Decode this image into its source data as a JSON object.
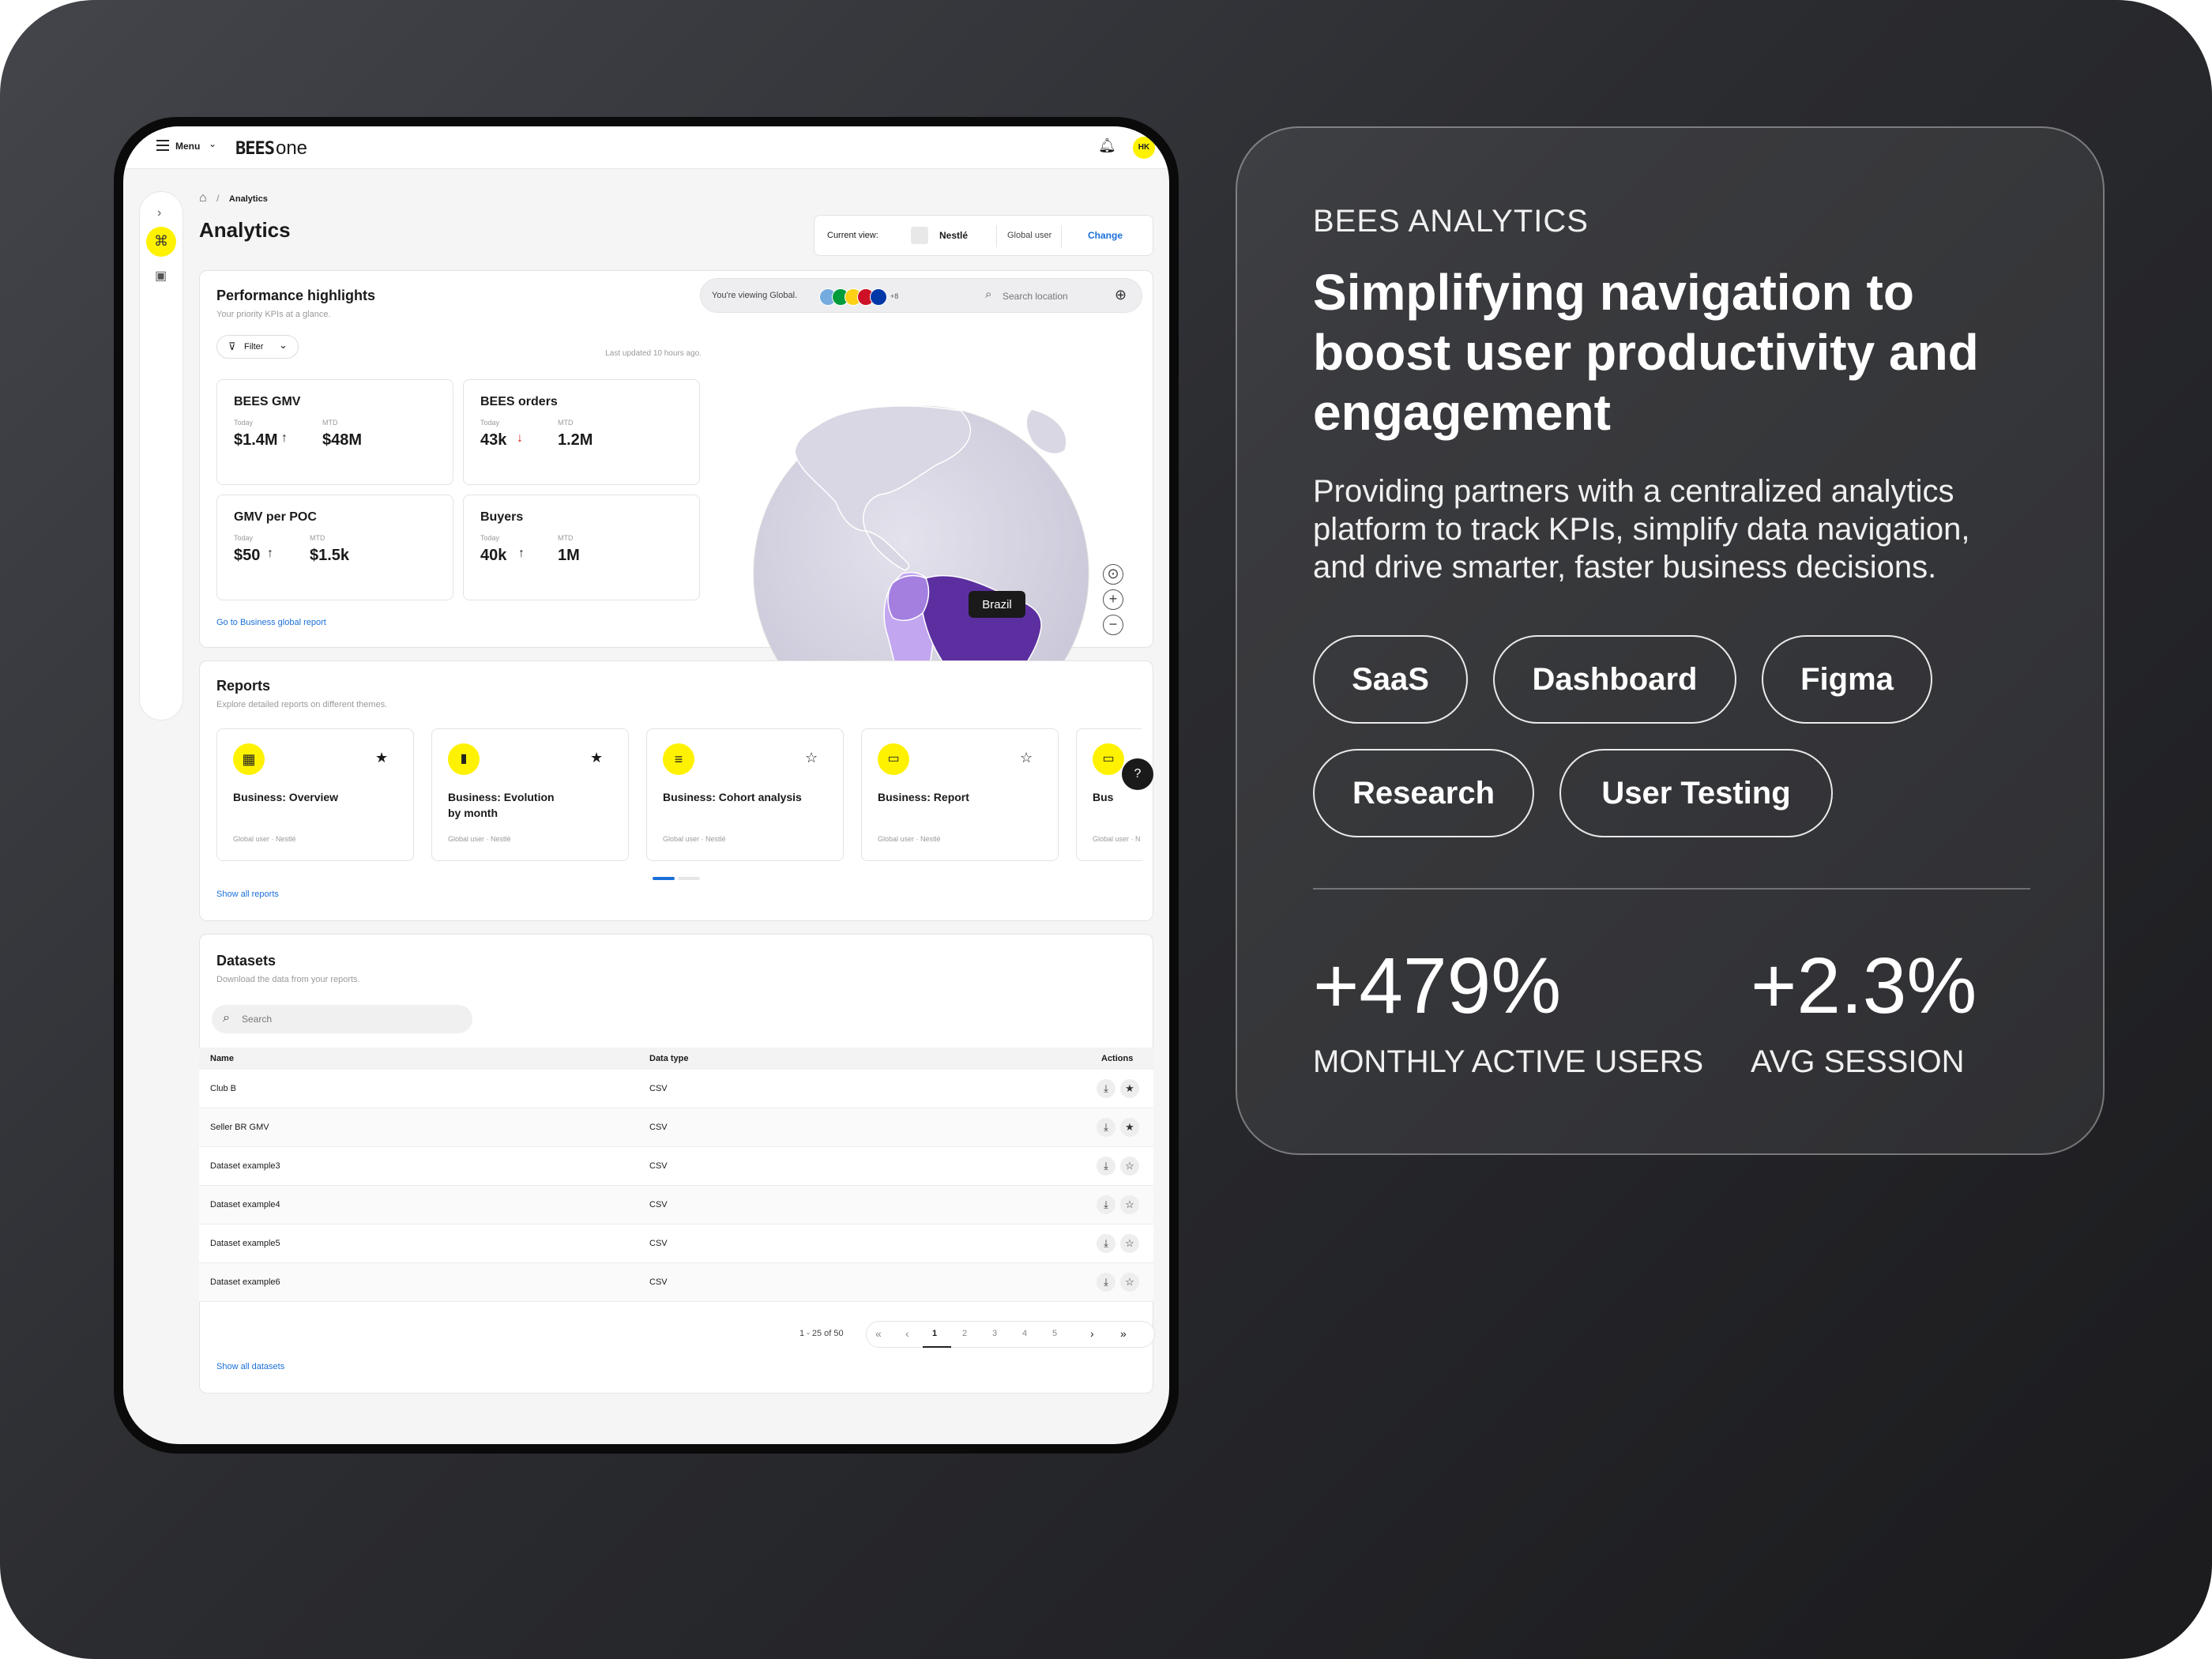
{
  "tablet": {
    "topbar": {
      "menu_label": "Menu",
      "logo_text": "BEES",
      "logo_suffix": "one",
      "avatar_initials": "HK"
    },
    "breadcrumb": {
      "current": "Analytics",
      "separator": "/"
    },
    "page_title": "Analytics",
    "current_view": {
      "label": "Current view:",
      "company": "Nestlé",
      "user_type": "Global user",
      "change_label": "Change"
    },
    "performance": {
      "title": "Performance highlights",
      "subtitle": "Your priority KPIs at a glance.",
      "filter_label": "Filter",
      "last_updated": "Last updated 10 hours ago.",
      "kpis": [
        {
          "title": "BEES GMV",
          "today_label": "Today",
          "today_value": "$1.4M",
          "today_trend": "↑",
          "mtd_label": "MTD",
          "mtd_value": "$48M"
        },
        {
          "title": "BEES orders",
          "today_label": "Today",
          "today_value": "43k",
          "today_trend": "↓",
          "mtd_label": "MTD",
          "mtd_value": "1.2M"
        },
        {
          "title": "GMV per POC",
          "today_label": "Today",
          "today_value": "$50",
          "today_trend": "↑",
          "mtd_label": "MTD",
          "mtd_value": "$1.5k"
        },
        {
          "title": "Buyers",
          "today_label": "Today",
          "today_value": "40k",
          "today_trend": "↑",
          "mtd_label": "MTD",
          "mtd_value": "1M"
        }
      ],
      "report_link": "Go to Business global report"
    },
    "map": {
      "viewing_text": "You're viewing Global.",
      "more_flags": "+8",
      "search_placeholder": "Search location",
      "tooltip": "Brazil",
      "colors": {
        "ocean": "#d7d5e2",
        "brazil": "#5c2fa0",
        "neighbors": "#a47fe0",
        "south": "#c2a6f0"
      }
    },
    "reports": {
      "title": "Reports",
      "subtitle": "Explore detailed reports on different themes.",
      "items": [
        {
          "title": "Business: Overview",
          "title2": "",
          "meta": "Global user · Nestlé",
          "starred": "★",
          "icon": "grid-icon"
        },
        {
          "title": "Business: Evolution",
          "title2": "by month",
          "meta": "Global user · Nestlé",
          "starred": "★",
          "icon": "bar-chart-icon"
        },
        {
          "title": "Business: Cohort analysis",
          "title2": "",
          "meta": "Global user · Nestlé",
          "starred": "☆",
          "icon": "layers-icon"
        },
        {
          "title": "Business: Report",
          "title2": "",
          "meta": "Global user · Nestlé",
          "starred": "☆",
          "icon": "card-icon"
        },
        {
          "title": "Bus",
          "title2": "",
          "meta": "Global user · N",
          "starred": "",
          "icon": "card-icon"
        }
      ],
      "show_all": "Show all reports"
    },
    "datasets": {
      "title": "Datasets",
      "subtitle": "Download the data from your reports.",
      "search_placeholder": "Search",
      "columns": [
        "Name",
        "Data type",
        "Actions"
      ],
      "rows": [
        {
          "name": "Club B",
          "type": "CSV",
          "star": "★"
        },
        {
          "name": "Seller BR GMV",
          "type": "CSV",
          "star": "★"
        },
        {
          "name": "Dataset example3",
          "type": "CSV",
          "star": "☆"
        },
        {
          "name": "Dataset example4",
          "type": "CSV",
          "star": "☆"
        },
        {
          "name": "Dataset example5",
          "type": "CSV",
          "star": "☆"
        },
        {
          "name": "Dataset example6",
          "type": "CSV",
          "star": "☆"
        }
      ],
      "pagination": {
        "range": "1 - 25 of 50",
        "pages": [
          "1",
          "2",
          "3",
          "4",
          "5"
        ],
        "current": "1"
      },
      "show_all": "Show all datasets"
    }
  },
  "panel": {
    "eyebrow": "BEES ANALYTICS",
    "headline": [
      "Simplifying navigation to",
      "boost user productivity and",
      "engagement"
    ],
    "description": [
      "Providing partners with a centralized analytics",
      "platform to track KPIs, simplify data navigation,",
      "and drive smarter, faster business decisions."
    ],
    "tags": [
      "SaaS",
      "Dashboard",
      "Figma",
      "Research",
      "User Testing"
    ],
    "stats": [
      {
        "value": "+479%",
        "label": "MONTHLY ACTIVE USERS"
      },
      {
        "value": "+2.3%",
        "label": "AVG SESSION"
      }
    ]
  }
}
